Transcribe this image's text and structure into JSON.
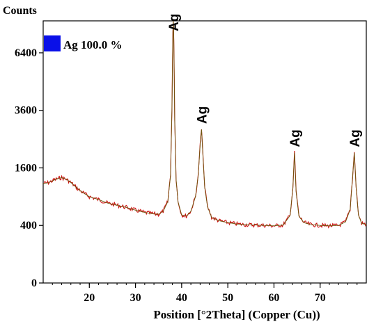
{
  "chart_data": {
    "type": "line",
    "ylabel": "Counts",
    "xlabel": "Position [°2Theta] (Copper (Cu))",
    "y_scale": "sqrt",
    "xlim": [
      10,
      80
    ],
    "ylim": [
      0,
      8300
    ],
    "x_ticks": [
      20,
      30,
      40,
      50,
      60,
      70
    ],
    "x_tick_labels": [
      "20",
      "30",
      "40",
      "50",
      "60",
      "70"
    ],
    "y_ticks": [
      0,
      400,
      1600,
      3600,
      6400
    ],
    "y_tick_labels": [
      "0",
      "400",
      "1600",
      "3600",
      "6400"
    ],
    "legend": {
      "position": "top-left",
      "entries": [
        {
          "label": "Ag 100.0 %",
          "color": "#0a10e8"
        }
      ]
    },
    "series": [
      {
        "color": "#cc1111",
        "x": [
          10,
          11,
          12,
          13,
          14,
          15,
          16,
          17,
          18,
          19,
          20,
          22,
          24,
          26,
          28,
          30,
          32,
          34,
          35,
          36,
          37,
          37.6,
          37.9,
          38.1,
          38.2,
          38.3,
          38.5,
          38.8,
          39.2,
          40,
          41,
          42,
          43,
          43.6,
          44.0,
          44.3,
          44.6,
          45.0,
          45.6,
          46.5,
          48,
          50,
          52,
          54,
          56,
          58,
          60,
          62,
          63.5,
          64.1,
          64.45,
          64.8,
          65.4,
          66.5,
          68,
          70,
          72,
          74,
          75.5,
          76.5,
          77.0,
          77.4,
          77.8,
          78.3,
          79,
          80
        ],
        "y": [
          1200,
          1210,
          1260,
          1310,
          1340,
          1300,
          1220,
          1120,
          1030,
          960,
          900,
          840,
          770,
          730,
          690,
          640,
          600,
          575,
          570,
          620,
          800,
          1400,
          3600,
          7600,
          8300,
          7200,
          3200,
          1300,
          800,
          560,
          540,
          620,
          900,
          1400,
          2300,
          2850,
          2000,
          1100,
          700,
          520,
          470,
          440,
          420,
          410,
          405,
          400,
          395,
          405,
          550,
          1100,
          2050,
          1000,
          540,
          440,
          410,
          400,
          395,
          400,
          450,
          650,
          1300,
          2050,
          1100,
          560,
          430,
          410
        ]
      }
    ],
    "annotations": [
      {
        "text": "Ag",
        "x": 38.2
      },
      {
        "text": "Ag",
        "x": 44.3
      },
      {
        "text": "Ag",
        "x": 64.45
      },
      {
        "text": "Ag",
        "x": 77.4
      }
    ]
  }
}
